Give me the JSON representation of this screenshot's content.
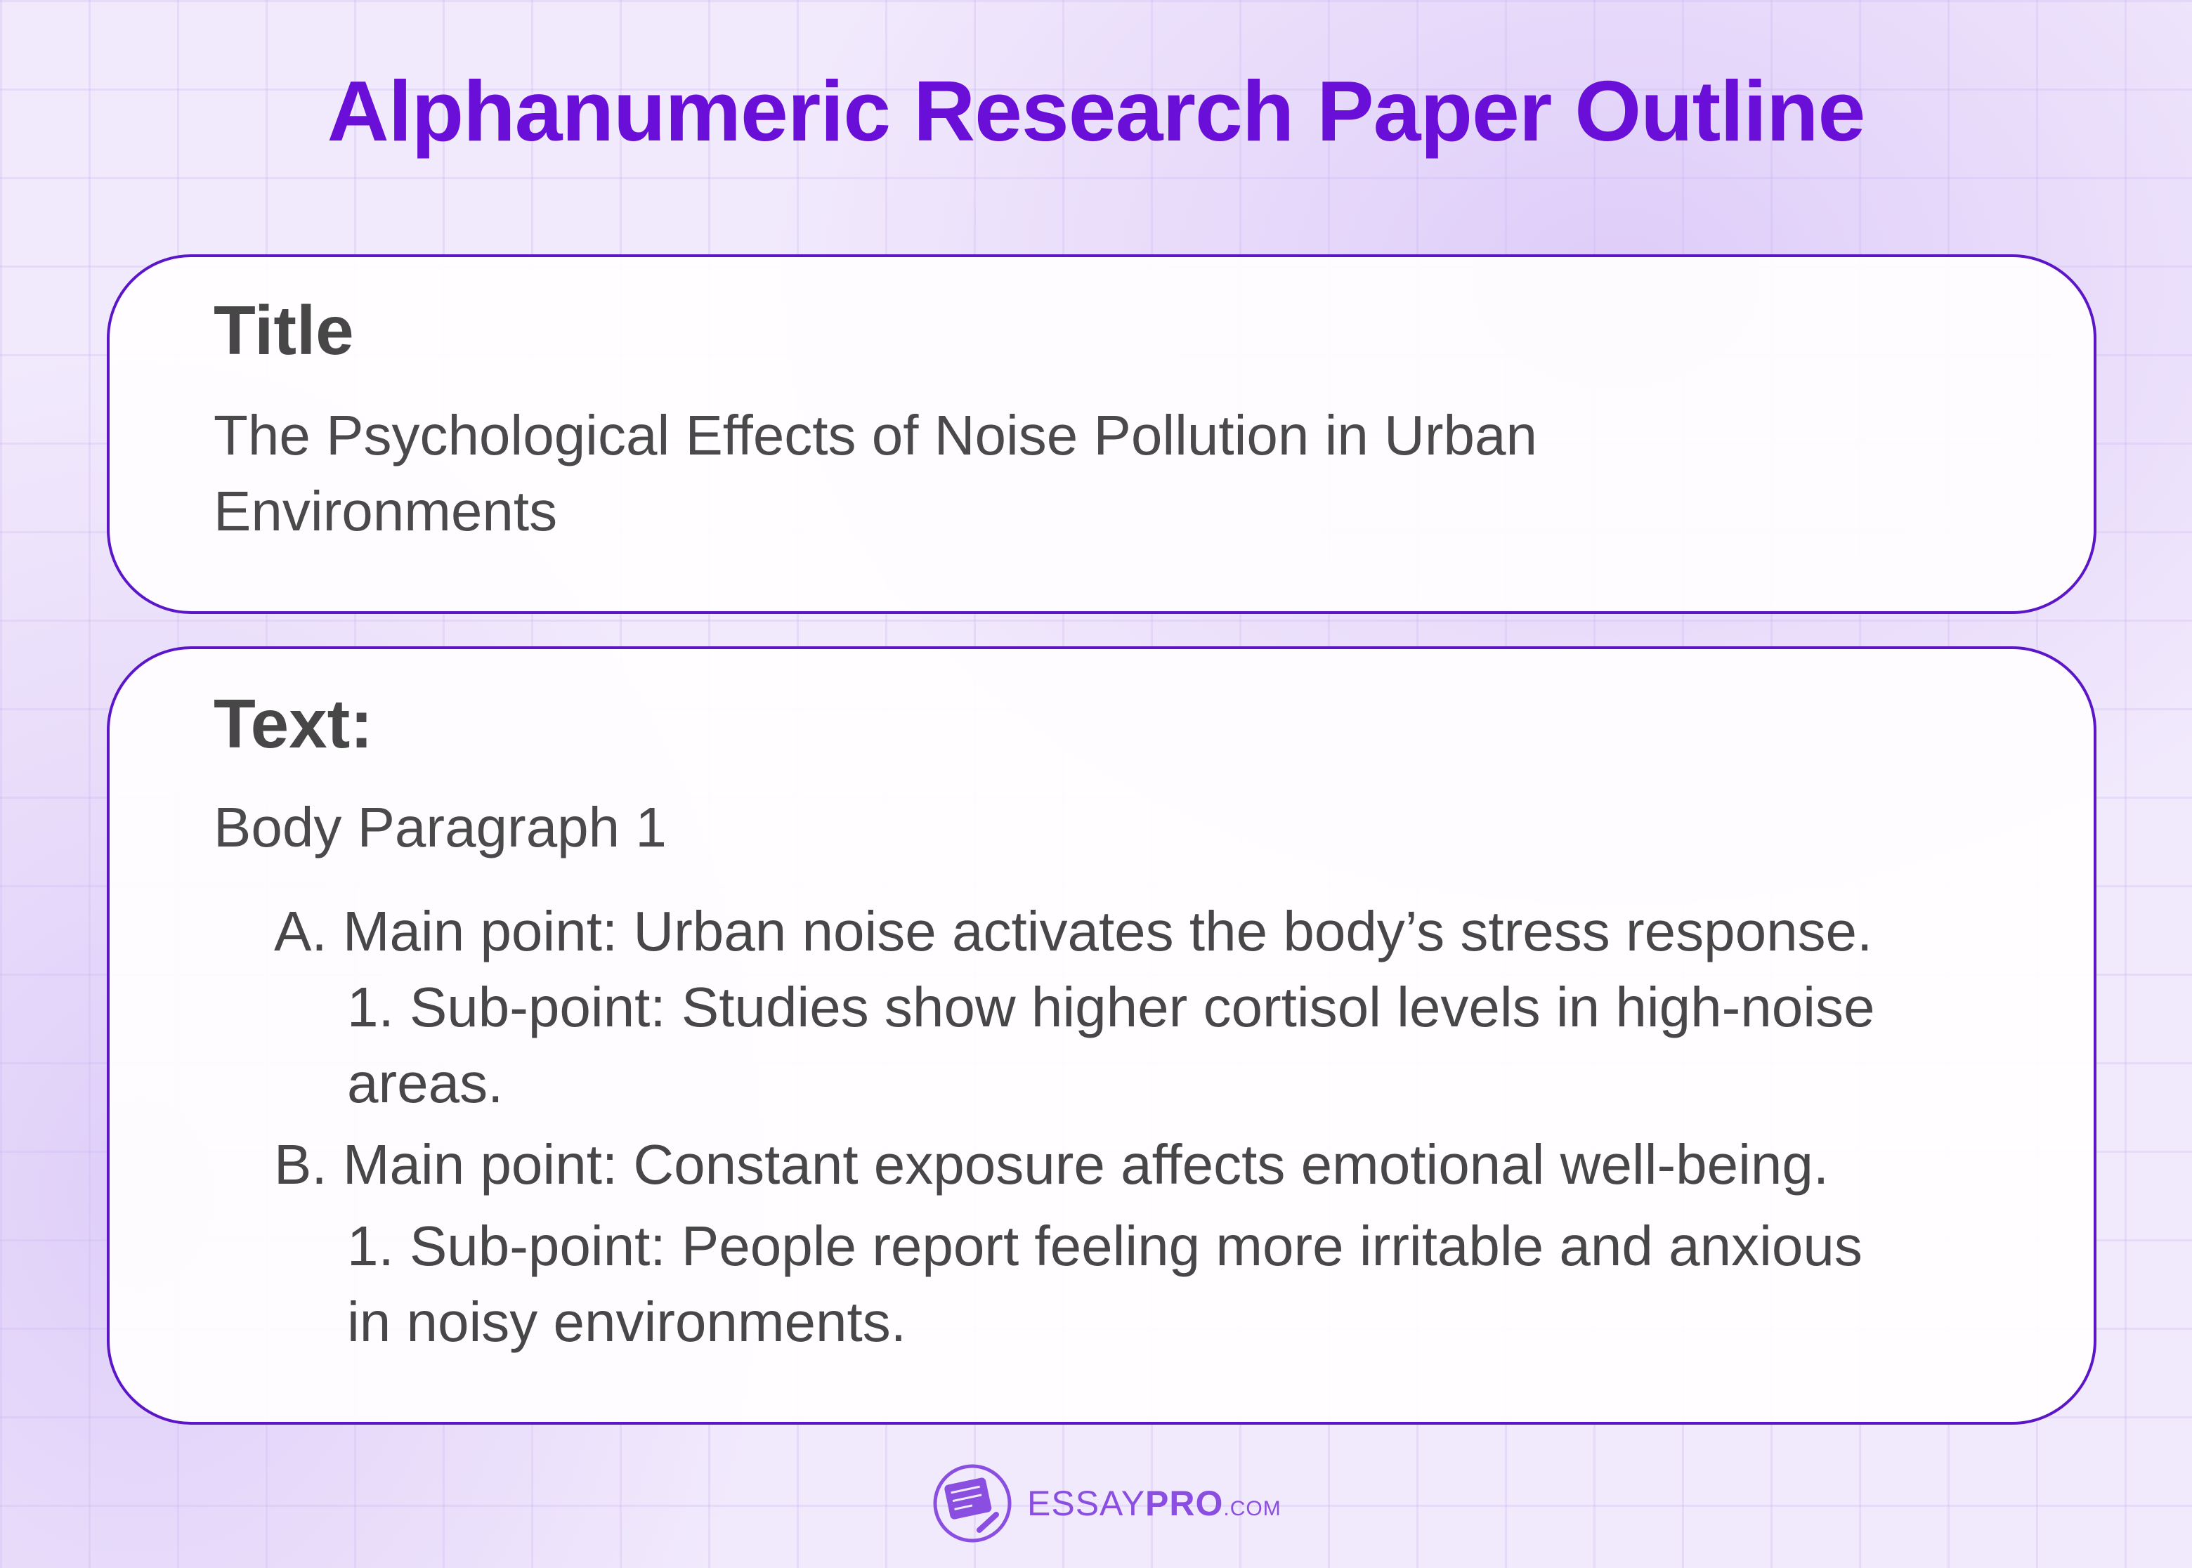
{
  "heading": "Alphanumeric Research Paper Outline",
  "title_card": {
    "label": "Title",
    "text": "The Psychological Effects of Noise Pollution in Urban Environments"
  },
  "text_card": {
    "label": "Text:",
    "section": "Body Paragraph 1",
    "lines": [
      "A. Main point: Urban noise activates the body’s stress response.",
      "1. Sub-point: Studies show higher cortisol levels in high-noise",
      "areas.",
      "B. Main point: Constant exposure affects emotional well-being.",
      "1. Sub-point: People report feeling more irritable and anxious",
      "in noisy environments."
    ]
  },
  "logo": {
    "essay": "ESSAY",
    "pro": "PRO",
    "com": ".COM",
    "icon": "notepad-pencil-icon"
  },
  "colors": {
    "heading": "#6a0fd8",
    "border": "#5b16c8",
    "logo": "#8a4fe0",
    "text": "#474747"
  }
}
